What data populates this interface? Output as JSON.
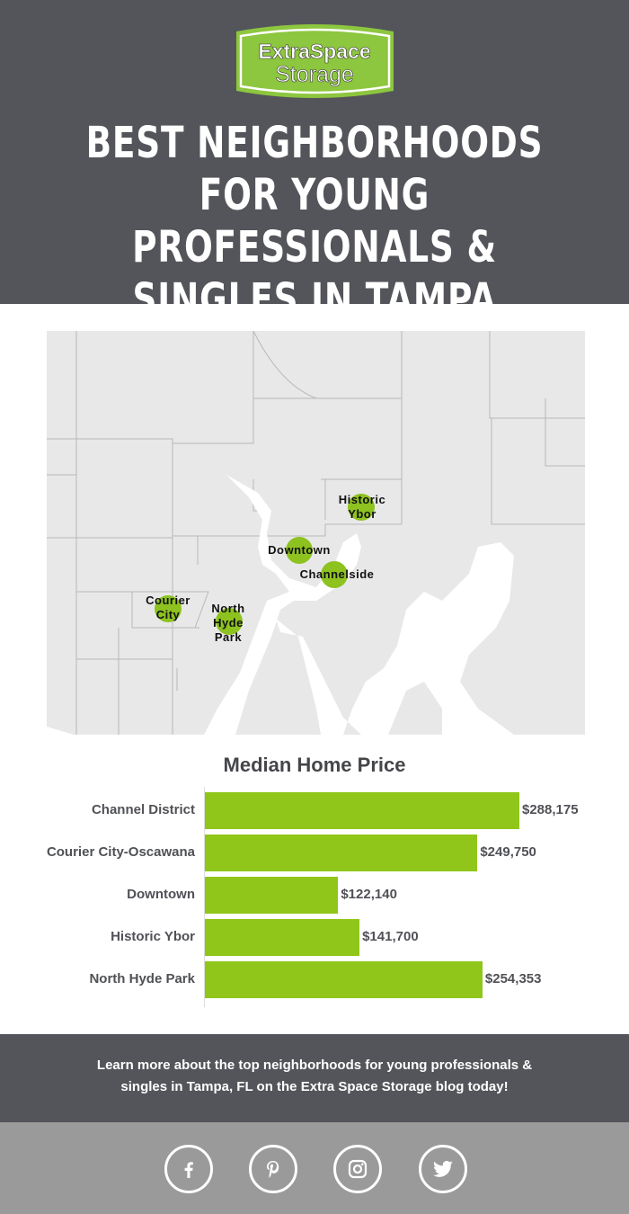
{
  "logo": {
    "line1": "ExtraSpace",
    "line2": "Storage"
  },
  "title": "BEST NEIGHBORHOODS FOR YOUNG PROFESSIONALS & SINGLES IN TAMPA",
  "map_labels": [
    "Historic Ybor",
    "Downtown",
    "Channelside",
    "Courier City",
    "North Hyde Park"
  ],
  "chart_data": {
    "type": "bar",
    "orientation": "horizontal",
    "title": "Median Home Price",
    "categories": [
      "Channel District",
      "Courier City-Oscawana",
      "Downtown",
      "Historic Ybor",
      "North Hyde Park"
    ],
    "values": [
      288175,
      249750,
      122140,
      141700,
      254353
    ],
    "labels": [
      "$288,175",
      "$249,750",
      "$122,140",
      "$141,700",
      "$254,353"
    ],
    "color": "#8fc619"
  },
  "cta": "Learn more about the top neighborhoods for young professionals & singles in Tampa, FL on the Extra Space Storage blog today!",
  "social": [
    "facebook-icon",
    "pinterest-icon",
    "instagram-icon",
    "twitter-icon"
  ],
  "colors": {
    "header": "#54555a",
    "accent": "#8fc619",
    "footer": "#9a9a9a"
  }
}
